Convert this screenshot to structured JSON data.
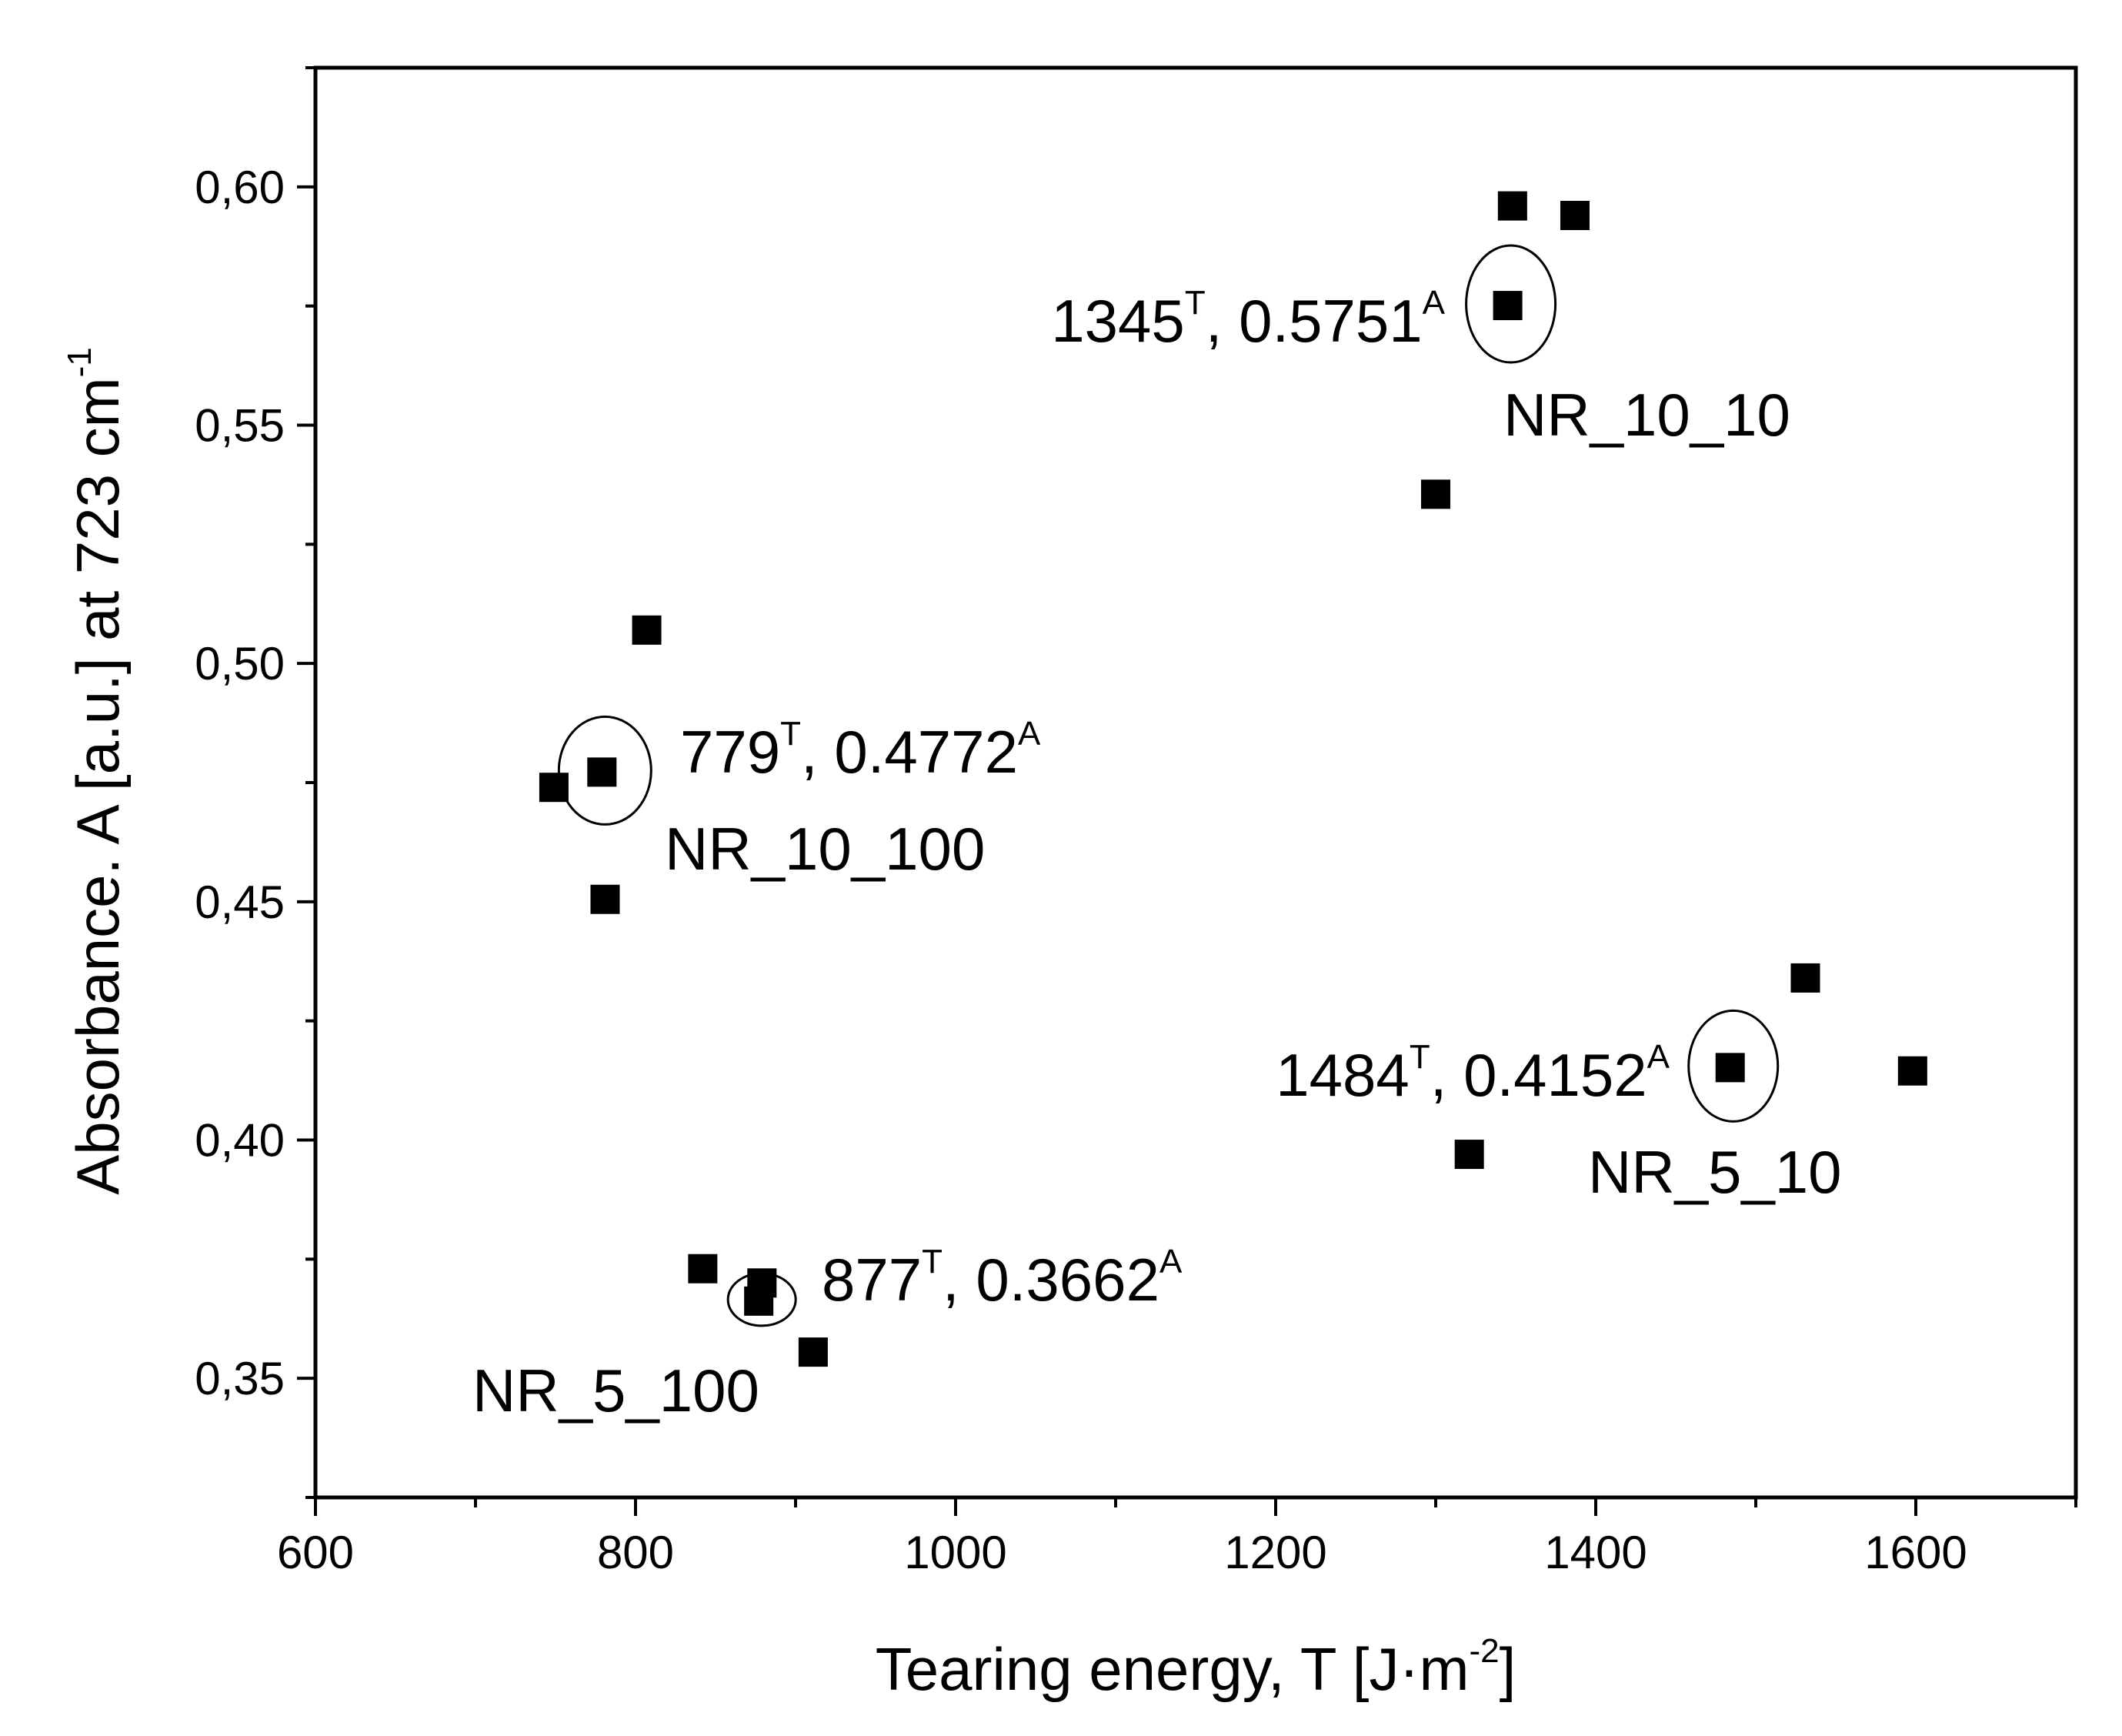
{
  "chart_data": {
    "type": "scatter",
    "title": "",
    "xlabel": "Tearing energy, T [J·m",
    "xlabel_exp": "-2",
    "xlabel_tail": "]",
    "ylabel": "Absorbance. A [a.u.] at 723 cm",
    "ylabel_exp": "-1",
    "xlim": [
      600,
      1700
    ],
    "ylim": [
      0.325,
      0.625
    ],
    "x_ticks": [
      600,
      800,
      1000,
      1200,
      1400,
      1600
    ],
    "x_tick_labels": [
      "600",
      "800",
      "1000",
      "1200",
      "1400",
      "1600"
    ],
    "y_ticks": [
      0.35,
      0.4,
      0.45,
      0.5,
      0.55,
      0.6
    ],
    "y_tick_labels": [
      "0,35",
      "0,40",
      "0,45",
      "0,50",
      "0,55",
      "0,60"
    ],
    "series": [
      {
        "name": "NR_10_10",
        "points": [
          [
            1348,
            0.596
          ],
          [
            1387,
            0.594
          ],
          [
            1345,
            0.5751
          ],
          [
            1300,
            0.5355
          ]
        ]
      },
      {
        "name": "NR_10_100",
        "points": [
          [
            807,
            0.507
          ],
          [
            749,
            0.474
          ],
          [
            779,
            0.4772
          ],
          [
            781,
            0.4505
          ]
        ]
      },
      {
        "name": "NR_5_10",
        "points": [
          [
            1531,
            0.434
          ],
          [
            1484,
            0.4152
          ],
          [
            1598,
            0.4145
          ],
          [
            1321,
            0.397
          ]
        ]
      },
      {
        "name": "NR_5_100",
        "points": [
          [
            842,
            0.373
          ],
          [
            879,
            0.37
          ],
          [
            877,
            0.3662
          ],
          [
            911,
            0.3555
          ]
        ]
      }
    ],
    "annotations": [
      {
        "group": "NR_10_10",
        "t_value": "1345",
        "a_value": "0.5751",
        "t_mark": "T",
        "a_mark": "A",
        "name_label": "NR_10_10"
      },
      {
        "group": "NR_10_100",
        "t_value": "779",
        "a_value": "0.4772",
        "t_mark": "T",
        "a_mark": "A",
        "name_label": "NR_10_100"
      },
      {
        "group": "NR_5_10",
        "t_value": "1484",
        "a_value": "0.4152",
        "t_mark": "T",
        "a_mark": "A",
        "name_label": "NR_5_10"
      },
      {
        "group": "NR_5_100",
        "t_value": "877",
        "a_value": "0.3662",
        "t_mark": "T",
        "a_mark": "A",
        "name_label": "NR_5_100"
      }
    ],
    "grid": false,
    "marker": "square",
    "colors": {
      "marker": "#000000",
      "axis": "#000000",
      "background": "#ffffff"
    }
  }
}
